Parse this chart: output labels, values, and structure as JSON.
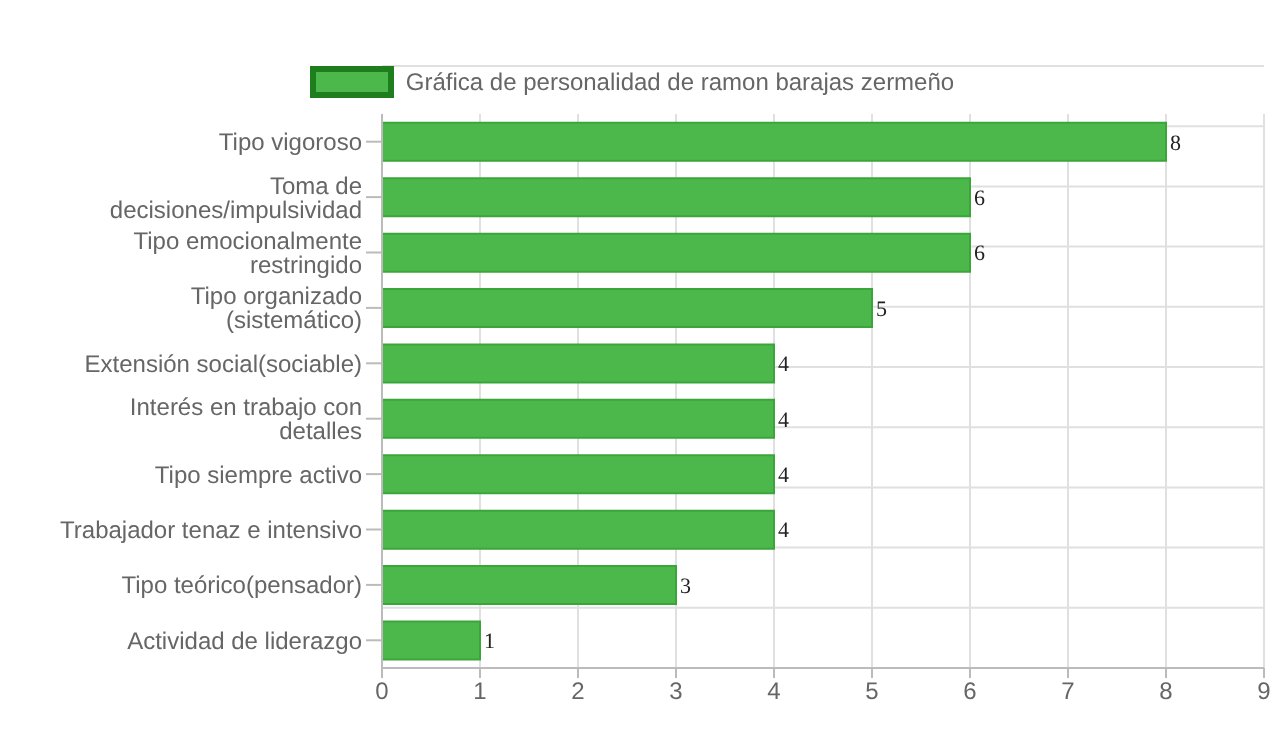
{
  "chart_data": {
    "type": "bar",
    "orientation": "horizontal",
    "categories": [
      "Tipo vigoroso",
      "Toma de decisiones/impulsividad",
      "Tipo emocionalmente restringido",
      "Tipo organizado (sistemático)",
      "Extensión social(sociable)",
      "Interés en trabajo con detalles",
      "Tipo siempre activo",
      "Trabajador tenaz e intensivo",
      "Tipo teórico(pensador)",
      "Actividad de liderazgo"
    ],
    "series": [
      {
        "name": "Gráfica de personalidad de ramon barajas zermeño",
        "color": "#4cb84c",
        "values": [
          8,
          6,
          6,
          5,
          4,
          4,
          4,
          4,
          3,
          1
        ]
      }
    ],
    "xlim": [
      0,
      9
    ],
    "xticks": [
      0,
      1,
      2,
      3,
      4,
      5,
      6,
      7,
      8,
      9
    ],
    "grid": true,
    "legend": "top",
    "data_labels": true
  }
}
